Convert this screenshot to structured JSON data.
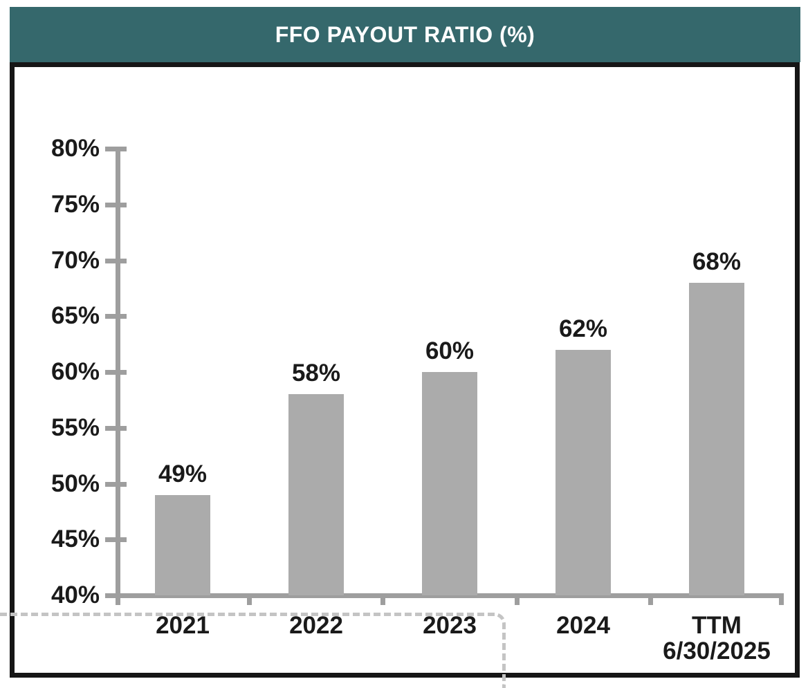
{
  "header": {
    "title": "FFO PAYOUT RATIO (%)"
  },
  "colors": {
    "header_bg": "#35686C",
    "header_text": "#FFFFFF",
    "bar_fill": "#ABABAB",
    "axis": "#9E9E9E",
    "label_text": "#1A1A1A",
    "frame_border": "#161616",
    "dashed_line": "#C4C4C4"
  },
  "chart_data": {
    "type": "bar",
    "title": "FFO PAYOUT RATIO (%)",
    "categories": [
      "2021",
      "2022",
      "2023",
      "2024",
      "TTM 6/30/2025"
    ],
    "category_lines": [
      [
        "2021"
      ],
      [
        "2022"
      ],
      [
        "2023"
      ],
      [
        "2024"
      ],
      [
        "TTM",
        "6/30/2025"
      ]
    ],
    "values": [
      49,
      58,
      60,
      62,
      68
    ],
    "data_labels": [
      "49%",
      "58%",
      "60%",
      "62%",
      "68%"
    ],
    "ylim": [
      40,
      80
    ],
    "ytick_values": [
      40,
      45,
      50,
      55,
      60,
      65,
      70,
      75,
      80
    ],
    "ytick_labels": [
      "40%",
      "45%",
      "50%",
      "55%",
      "60%",
      "65%",
      "70%",
      "75%",
      "80%"
    ],
    "xlabel": "",
    "ylabel": "",
    "grid": false,
    "legend": false
  }
}
